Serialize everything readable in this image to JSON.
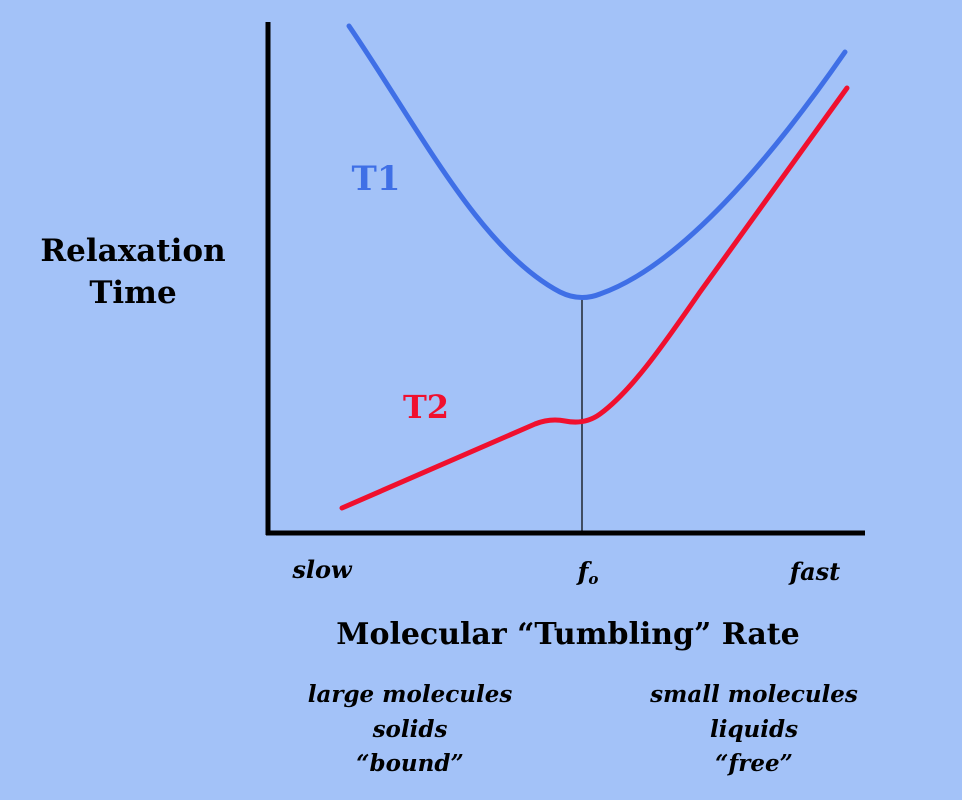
{
  "chart_data": {
    "type": "line",
    "ylabel_lines": [
      "Relaxation",
      "Time"
    ],
    "xlabel": "Molecular “Tumbling” Rate",
    "tick_labels": {
      "slow": "slow",
      "center_main": "f",
      "center_sub": "o",
      "fast": "fast"
    },
    "series": [
      {
        "name": "T1",
        "color": "#3f6fe6"
      },
      {
        "name": "T2",
        "color": "#f0102e"
      }
    ],
    "notes": {
      "left": [
        "large molecules",
        "solids",
        "“bound”"
      ],
      "right": [
        "small molecules",
        "liquids",
        "“free”"
      ]
    },
    "grid": false,
    "legend": "inline labels"
  },
  "colors": {
    "background": "#a3c2f8",
    "axis": "#000000",
    "t1": "#3f6fe6",
    "t2": "#f0102e",
    "text": "#000000"
  }
}
